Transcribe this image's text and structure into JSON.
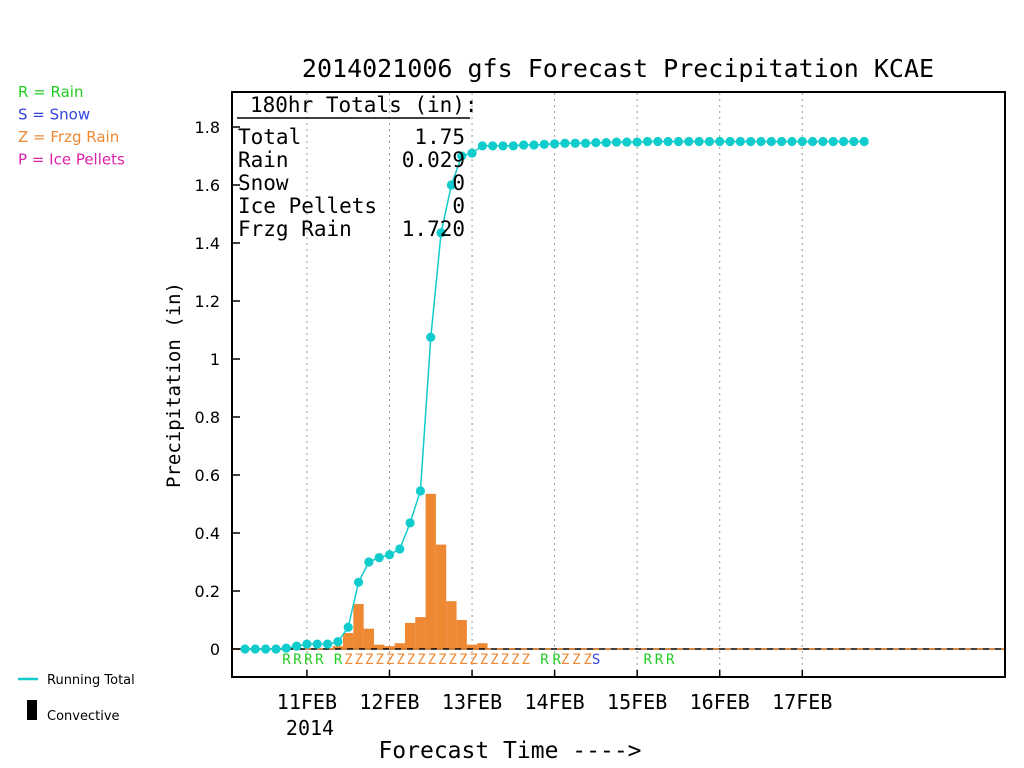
{
  "chart_data": {
    "type": "bar",
    "title": "2014021006 gfs Forecast Precipitation KCAE",
    "xlabel": "Forecast Time ---->",
    "ylabel": "Precipitation (in)",
    "ylim": [
      0,
      1.9
    ],
    "yticks": [
      "0",
      "0.2",
      "0.4",
      "0.6",
      "0.8",
      "1",
      "1.2",
      "1.4",
      "1.6",
      "1.8"
    ],
    "xticks": [
      "11FEB",
      "12FEB",
      "13FEB",
      "14FEB",
      "15FEB",
      "16FEB",
      "17FEB"
    ],
    "xticks_year": "2014",
    "grid": "vertical dotted",
    "time_step_hours": 3,
    "start": "2014-02-10 06Z",
    "legend_left": [
      {
        "text": "R = Rain",
        "color": "#22cc22"
      },
      {
        "text": "S = Snow",
        "color": "#3344dd"
      },
      {
        "text": "Z = Frzg Rain",
        "color": "#ee8833"
      },
      {
        "text": "P = Ice Pellets",
        "color": "#dd22aa"
      }
    ],
    "legend_bottom": [
      {
        "text": "Running Total",
        "kind": "line",
        "color": "#11cccc"
      },
      {
        "text": "Convective",
        "kind": "bar",
        "color": "#000000"
      }
    ],
    "totals": {
      "header": "180hr Totals (in):",
      "rows": [
        {
          "label": "Total",
          "value": "1.75"
        },
        {
          "label": "Rain",
          "value": "0.029"
        },
        {
          "label": "Snow",
          "value": "0"
        },
        {
          "label": "Ice Pellets",
          "value": "0"
        },
        {
          "label": "Frzg Rain",
          "value": "1.720"
        }
      ]
    },
    "series": [
      {
        "name": "Running Total",
        "color": "#11cccc",
        "values": [
          0,
          0,
          0,
          0,
          0.003,
          0.01,
          0.017,
          0.017,
          0.017,
          0.025,
          0.075,
          0.23,
          0.3,
          0.315,
          0.325,
          0.345,
          0.435,
          0.545,
          1.075,
          1.435,
          1.6,
          1.7,
          1.71,
          1.735,
          1.735,
          1.735,
          1.735,
          1.738,
          1.738,
          1.74,
          1.742,
          1.744,
          1.744,
          1.744,
          1.746,
          1.746,
          1.748,
          1.748,
          1.748,
          1.75,
          1.75,
          1.75,
          1.75,
          1.75,
          1.75,
          1.75,
          1.75,
          1.75,
          1.75,
          1.75,
          1.75,
          1.75,
          1.75,
          1.75,
          1.75,
          1.75,
          1.75,
          1.75,
          1.75,
          1.75,
          1.75
        ]
      },
      {
        "name": "Precipitation",
        "color": "#ee8833",
        "bar_values": [
          0,
          0,
          0,
          0,
          0,
          0,
          0,
          0,
          0,
          0.01,
          0.055,
          0.155,
          0.07,
          0.015,
          0.01,
          0.02,
          0.09,
          0.11,
          0.535,
          0.36,
          0.165,
          0.1,
          0.015,
          0.02,
          0,
          0,
          0,
          0,
          0,
          0,
          0,
          0,
          0,
          0,
          0,
          0,
          0,
          0,
          0,
          0,
          0,
          0,
          0,
          0,
          0,
          0,
          0,
          0,
          0,
          0,
          0,
          0,
          0,
          0,
          0,
          0,
          0,
          0,
          0,
          0,
          0
        ]
      }
    ],
    "ptype_groups": [
      {
        "text": "RRRR",
        "color": "#22cc22",
        "start": 4
      },
      {
        "text": "R",
        "color": "#22cc22",
        "start": 9
      },
      {
        "text": "ZZZZZZZZZZZZZZZZZZ",
        "color": "#ee8833",
        "start": 10
      },
      {
        "text": "RR",
        "color": "#22cc22",
        "start": 29
      },
      {
        "text": "ZZZ",
        "color": "#ee8833",
        "start": 31
      },
      {
        "text": "S",
        "color": "#3344dd",
        "start": 34
      },
      {
        "text": "RRR",
        "color": "#22cc22",
        "start": 39
      }
    ]
  }
}
